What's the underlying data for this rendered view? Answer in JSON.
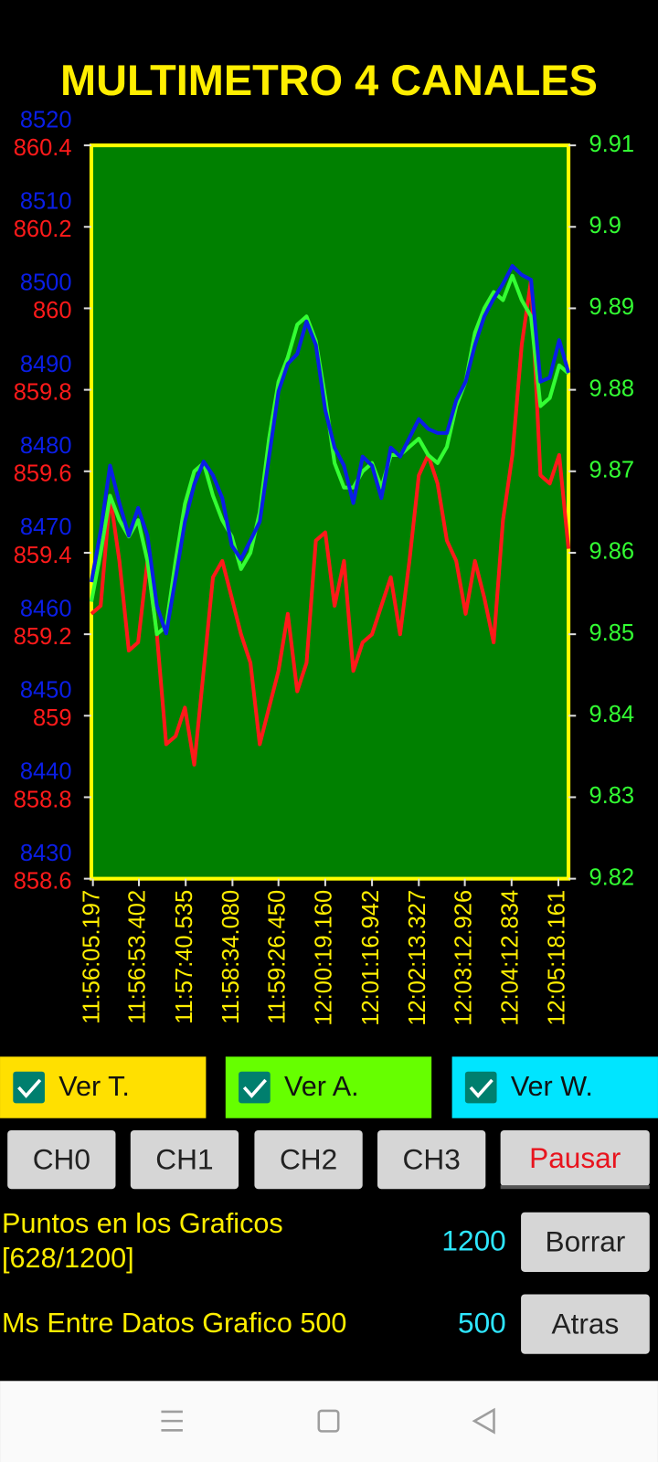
{
  "chart_data": {
    "type": "line",
    "title": "MULTIMETRO 4 CANALES",
    "x": [
      0,
      12,
      24,
      36,
      48,
      60,
      72,
      84,
      96,
      108,
      120,
      132,
      144,
      156,
      168,
      180,
      192,
      204,
      216,
      228,
      240,
      252,
      264,
      276,
      288,
      300,
      312,
      324,
      336,
      348,
      360,
      372,
      384,
      396,
      408,
      420,
      432,
      444,
      456,
      468,
      480,
      492,
      504,
      516,
      528,
      540,
      552,
      564,
      576,
      588,
      600,
      612
    ],
    "xlim": [
      0,
      612
    ],
    "xticks": [
      {
        "value": 2,
        "label": "11:56:05.197"
      },
      {
        "value": 61,
        "label": "11:56:53.402"
      },
      {
        "value": 121,
        "label": "11:57:40.535"
      },
      {
        "value": 181,
        "label": "11:58:34.080"
      },
      {
        "value": 240,
        "label": "11:59:26.450"
      },
      {
        "value": 300,
        "label": "12:00:19.160"
      },
      {
        "value": 360,
        "label": "12:01:16.942"
      },
      {
        "value": 420,
        "label": "12:02:13.327"
      },
      {
        "value": 479,
        "label": "12:03:12.926"
      },
      {
        "value": 539,
        "label": "12:04:12.834"
      },
      {
        "value": 599,
        "label": "12:05:18.161"
      }
    ],
    "series": [
      {
        "color": "#ff1a1a",
        "side": "left",
        "ylim": [
          858.6,
          860.4
        ],
        "yticks": [
          858.6,
          858.8,
          859,
          859.2,
          859.4,
          859.6,
          859.8,
          860,
          860.2,
          860.4
        ],
        "values": [
          859.25,
          859.27,
          859.54,
          859.38,
          859.16,
          859.18,
          859.38,
          859.2,
          858.93,
          858.95,
          859.02,
          858.88,
          859.11,
          859.34,
          859.38,
          859.29,
          859.2,
          859.13,
          858.93,
          859.02,
          859.11,
          859.25,
          859.06,
          859.13,
          859.43,
          859.45,
          859.27,
          859.38,
          859.11,
          859.18,
          859.2,
          859.27,
          859.34,
          859.2,
          859.38,
          859.59,
          859.64,
          859.57,
          859.43,
          859.38,
          859.25,
          859.38,
          859.29,
          859.18,
          859.48,
          859.64,
          859.91,
          860.07,
          859.59,
          859.57,
          859.64,
          859.41
        ]
      },
      {
        "color": "#33ff33",
        "side": "right",
        "ylim": [
          9.82,
          9.91
        ],
        "yticks": [
          9.82,
          9.83,
          9.84,
          9.85,
          9.86,
          9.87,
          9.88,
          9.89,
          9.9,
          9.91
        ],
        "values": [
          9.854,
          9.86,
          9.867,
          9.864,
          9.862,
          9.864,
          9.859,
          9.85,
          9.851,
          9.859,
          9.866,
          9.87,
          9.871,
          9.867,
          9.864,
          9.862,
          9.858,
          9.86,
          9.865,
          9.874,
          9.881,
          9.884,
          9.888,
          9.889,
          9.886,
          9.879,
          9.871,
          9.868,
          9.868,
          9.87,
          9.871,
          9.868,
          9.872,
          9.872,
          9.873,
          9.874,
          9.872,
          9.871,
          9.873,
          9.878,
          9.881,
          9.887,
          9.89,
          9.892,
          9.891,
          9.894,
          9.891,
          9.889,
          9.878,
          9.879,
          9.883,
          9.882
        ]
      },
      {
        "color": "#0a1ee6",
        "side": "left",
        "ylim": [
          8430,
          8520
        ],
        "yticks": [
          8430,
          8440,
          8450,
          8460,
          8470,
          8480,
          8490,
          8500,
          8510,
          8520
        ],
        "values": [
          8466.4,
          8472.7,
          8480.7,
          8476.1,
          8472.1,
          8475.5,
          8472.1,
          8463.5,
          8460.1,
          8466.9,
          8473.8,
          8478.4,
          8481.2,
          8479.5,
          8476.7,
          8470.9,
          8469.2,
          8471.5,
          8473.8,
          8481.8,
          8489.8,
          8493.2,
          8494.4,
          8498.4,
          8495.5,
          8487.5,
          8482.9,
          8480.7,
          8476.1,
          8481.8,
          8480.7,
          8476.7,
          8482.9,
          8481.8,
          8484.1,
          8486.4,
          8485.2,
          8484.7,
          8484.7,
          8488.7,
          8491,
          8495.5,
          8499,
          8501.2,
          8503,
          8505.2,
          8504.1,
          8503.5,
          8491,
          8491.5,
          8496.1,
          8492.1
        ]
      }
    ]
  },
  "checkboxes": [
    {
      "label": "Ver T.",
      "color": "#ffe000"
    },
    {
      "label": "Ver A.",
      "color": "#66ff00"
    },
    {
      "label": "Ver W.",
      "color": "#00e5ff"
    }
  ],
  "channel_buttons": [
    "CH0",
    "CH1",
    "CH2",
    "CH3"
  ],
  "pause_button": "Pausar",
  "points": {
    "label": [
      "Puntos en los Graficos",
      "[628/1200]"
    ],
    "value": "1200",
    "button": "Borrar"
  },
  "interval": {
    "label": "Ms Entre Datos Grafico 500",
    "value": "500",
    "button": "Atras"
  }
}
